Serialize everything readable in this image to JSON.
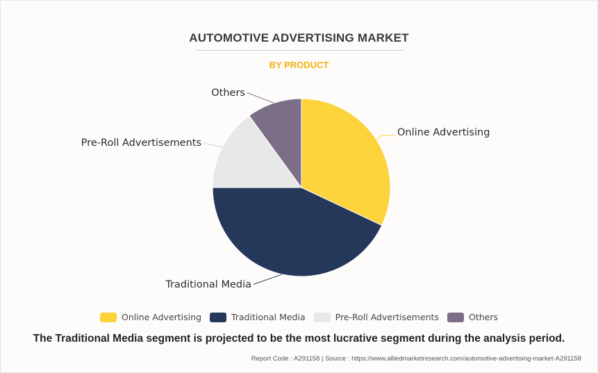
{
  "header": {
    "title": "AUTOMOTIVE ADVERTISING MARKET",
    "subtitle": "BY PRODUCT"
  },
  "chart_data": {
    "type": "pie",
    "categories": [
      "Online Advertising",
      "Traditional Media",
      "Pre-Roll Advertisements",
      "Others"
    ],
    "values": [
      32,
      43,
      15,
      10
    ],
    "colors": [
      "#fdd33c",
      "#25385a",
      "#e8e8e8",
      "#7c6e86"
    ],
    "legend_position": "bottom"
  },
  "footer": {
    "note": "The Traditional Media segment is projected to be the most lucrative segment during the analysis period.",
    "source": "Report Code : A291158  |  Source : https://www.alliedmarketresearch.com/automotive-advertising-market-A291158"
  }
}
